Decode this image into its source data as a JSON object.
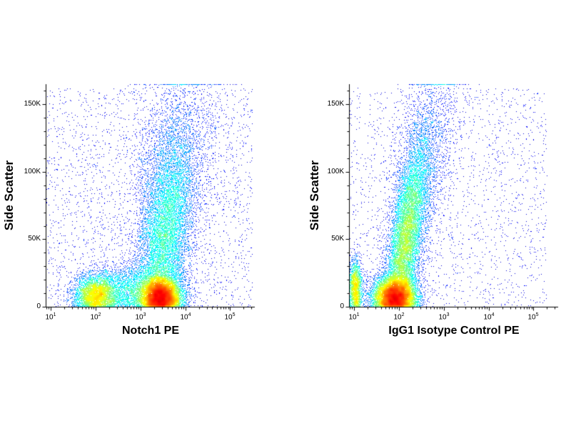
{
  "figure": {
    "background": "#ffffff",
    "point_colormap": "jet",
    "sparse_dot_color": "#00008b",
    "hot_dot_color": "#e60000"
  },
  "chart_data": [
    {
      "type": "scatter",
      "subtype": "flow-cytometry-density-dot-plot",
      "xlabel": "Notch1 PE",
      "ylabel": "Side Scatter",
      "x_scale": "log",
      "x_log_range": [
        0.9,
        5.55
      ],
      "y_range": [
        0,
        165000
      ],
      "y_ref": 150000,
      "seed": 20,
      "x_ticks": [
        {
          "v": 1,
          "label": "10^1"
        },
        {
          "v": 2,
          "label": "10^2"
        },
        {
          "v": 3,
          "label": "10^3"
        },
        {
          "v": 4,
          "label": "10^4"
        },
        {
          "v": 5,
          "label": "10^5"
        }
      ],
      "y_ticks": [
        {
          "v": 0,
          "label": "0"
        },
        {
          "v": 50000,
          "label": "50K"
        },
        {
          "v": 100000,
          "label": "100K"
        },
        {
          "v": 150000,
          "label": "150K"
        }
      ],
      "y_minor_step": 10000,
      "colormap": "jet",
      "populations": [
        {
          "type": "blob",
          "n": 9000,
          "cx": 3.45,
          "sx": 0.22,
          "cy": 8000,
          "sy": 7000
        },
        {
          "type": "blob",
          "n": 3800,
          "cx": 2.0,
          "sx": 0.24,
          "cy": 9000,
          "sy": 7000
        },
        {
          "type": "blob",
          "n": 2600,
          "cx": 2.75,
          "sx": 0.5,
          "cy": 13000,
          "sy": 9000
        },
        {
          "type": "arm",
          "n": 8200,
          "cy": 52000,
          "sy": 36000,
          "cx0": 3.35,
          "cx_slope": 0.55,
          "sx": 0.3
        },
        {
          "type": "arm",
          "n": 2200,
          "cy": 112000,
          "sy": 34000,
          "cx0": 3.3,
          "cx_slope": 0.6,
          "sx": 0.45
        },
        {
          "type": "uniform",
          "n": 2600,
          "x0": 0.9,
          "x1": 5.5,
          "y0": 0,
          "y1": 162000
        }
      ]
    },
    {
      "type": "scatter",
      "subtype": "flow-cytometry-density-dot-plot",
      "xlabel": "IgG1 Isotype Control PE",
      "ylabel": "Side Scatter",
      "x_scale": "log",
      "x_log_range": [
        0.9,
        5.55
      ],
      "y_range": [
        0,
        165000
      ],
      "y_ref": 150000,
      "seed": 77,
      "x_ticks": [
        {
          "v": 1,
          "label": "10^1"
        },
        {
          "v": 2,
          "label": "10^2"
        },
        {
          "v": 3,
          "label": "10^3"
        },
        {
          "v": 4,
          "label": "10^4"
        },
        {
          "v": 5,
          "label": "10^5"
        }
      ],
      "y_ticks": [
        {
          "v": 0,
          "label": "0"
        },
        {
          "v": 50000,
          "label": "50K"
        },
        {
          "v": 100000,
          "label": "100K"
        },
        {
          "v": 150000,
          "label": "150K"
        }
      ],
      "y_minor_step": 10000,
      "colormap": "jet",
      "populations": [
        {
          "type": "blob",
          "n": 8800,
          "cx": 1.9,
          "sx": 0.24,
          "cy": 8000,
          "sy": 7000
        },
        {
          "type": "arm",
          "n": 8800,
          "cy": 48000,
          "sy": 34000,
          "cx0": 1.95,
          "cx_slope": 0.6,
          "sx": 0.18
        },
        {
          "type": "arm",
          "n": 2600,
          "cy": 102000,
          "sy": 38000,
          "cx0": 2.0,
          "cx_slope": 0.75,
          "sx": 0.3
        },
        {
          "type": "blob",
          "n": 1900,
          "cx": 1.03,
          "sx": 0.07,
          "cy": 14000,
          "sy": 11000
        },
        {
          "type": "uniform",
          "n": 1900,
          "x0": 0.9,
          "x1": 5.3,
          "y0": 0,
          "y1": 162000
        }
      ]
    }
  ]
}
